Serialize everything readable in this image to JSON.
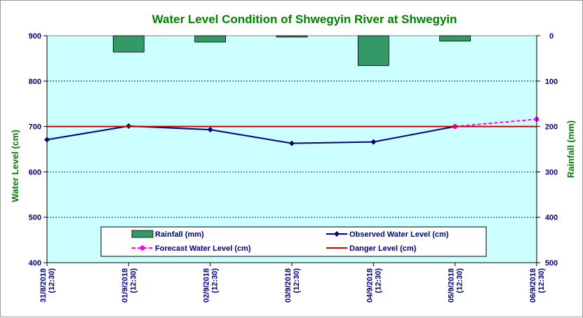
{
  "chart_data": {
    "type": "line",
    "title": "Water Level Condition of Shwegyin  River at  Shwegyin",
    "x": [
      "31/8/2018 (12:30)",
      "01/9/2018 (12:30)",
      "02/9/2018 (12:30)",
      "03/9/2018 (12:30)",
      "04/9/2018 (12:30)",
      "05/9/2018 (12:30)",
      "06/9/2018 (12:30)"
    ],
    "ylabel": "Water Level (cm)",
    "ylim": [
      400,
      900
    ],
    "yticks": [
      400,
      500,
      600,
      700,
      800,
      900
    ],
    "y2label": "Rainfall (mm)",
    "y2lim": [
      0,
      500
    ],
    "y2ticks": [
      0,
      100,
      200,
      300,
      400,
      500
    ],
    "y2_inverted": true,
    "series": [
      {
        "name": "Rainfall (mm)",
        "kind": "bar",
        "axis": "right",
        "values": [
          0,
          36,
          14,
          3,
          66,
          12,
          0
        ],
        "color": "#339966"
      },
      {
        "name": "Observed Water Level (cm)",
        "kind": "line",
        "axis": "left",
        "values": [
          671,
          701,
          693,
          663,
          666,
          700,
          null
        ],
        "color": "#000080"
      },
      {
        "name": "Forecast Water Level (cm)",
        "kind": "line-dashed",
        "axis": "left",
        "values": [
          null,
          null,
          null,
          null,
          null,
          700,
          716
        ],
        "color": "#ff00ff"
      },
      {
        "name": "Danger Level (cm)",
        "kind": "hline",
        "axis": "left",
        "value": 700,
        "color": "#cc0000"
      }
    ],
    "legend": [
      "Rainfall (mm)",
      "Observed Water Level (cm)",
      "Forecast Water Level (cm)",
      "Danger Level (cm)"
    ],
    "grid": "horizontal dotted",
    "legend_position": "bottom-center",
    "colors": {
      "plot_bg": "#ccffff",
      "title": "#008000",
      "axis_title": "#008000",
      "tick": "#000080"
    }
  }
}
